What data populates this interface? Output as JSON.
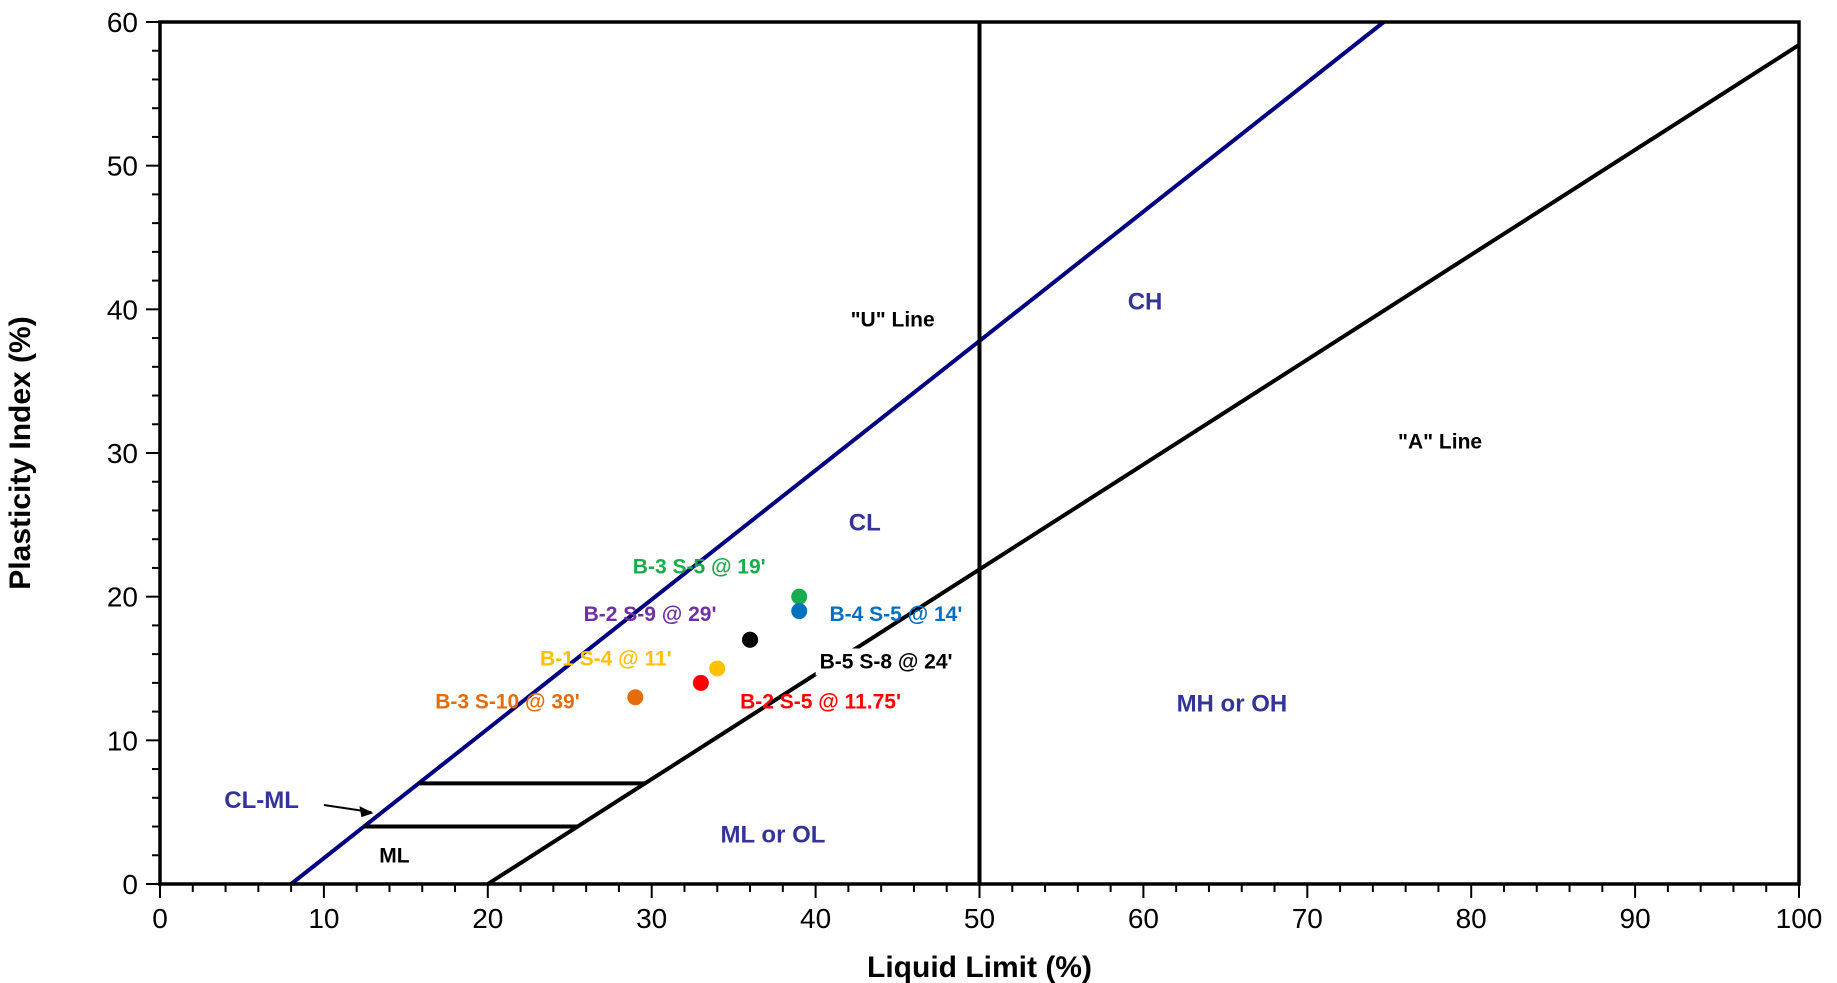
{
  "chart_data": {
    "type": "scatter",
    "title": "",
    "xlabel": "Liquid Limit (%)",
    "ylabel": "Plasticity Index (%)",
    "xlim": [
      0,
      100
    ],
    "ylim": [
      0,
      60
    ],
    "x_ticks": [
      "0",
      "10",
      "20",
      "30",
      "40",
      "50",
      "60",
      "70",
      "80",
      "90",
      "100"
    ],
    "y_ticks": [
      "0",
      "10",
      "20",
      "30",
      "40",
      "50",
      "60"
    ],
    "grid": false,
    "points": [
      {
        "label": "B-3 S-5 @ 19'",
        "x": 39,
        "y": 20,
        "color": "#1aab4c"
      },
      {
        "label": "B-2 S-9 @ 29'",
        "x": 36,
        "y": 17,
        "color": "#7030a0"
      },
      {
        "label": "B-4 S-5 @ 14'",
        "x": 39,
        "y": 19,
        "color": "#0070c0"
      },
      {
        "label": "B-1 S-4 @ 11'",
        "x": 34,
        "y": 15,
        "color": "#ffc000"
      },
      {
        "label": "B-5 S-8 @ 24'",
        "x": 36,
        "y": 17,
        "color": "#000000"
      },
      {
        "label": "B-3 S-10 @ 39'",
        "x": 29,
        "y": 13,
        "color": "#e46c0a"
      },
      {
        "label": "B-2 S-5 @ 11.75'",
        "x": 33,
        "y": 14,
        "color": "#ff0000"
      }
    ],
    "lines": [
      {
        "name": "\"U\" Line",
        "equation": "PI = 0.9 (LL - 8)",
        "color": "#000080"
      },
      {
        "name": "\"A\" Line",
        "equation": "PI = 0.73 (LL - 20)",
        "color": "#000000"
      },
      {
        "name": "LL = 50",
        "x": 50,
        "color": "#000000"
      }
    ],
    "zone_labels": [
      "CH",
      "CL",
      "MH or OH",
      "ML or OL",
      "CL-ML",
      "ML"
    ],
    "line_labels": [
      "\"U\" Line",
      "\"A\" Line"
    ],
    "zone_color": "#333399"
  }
}
